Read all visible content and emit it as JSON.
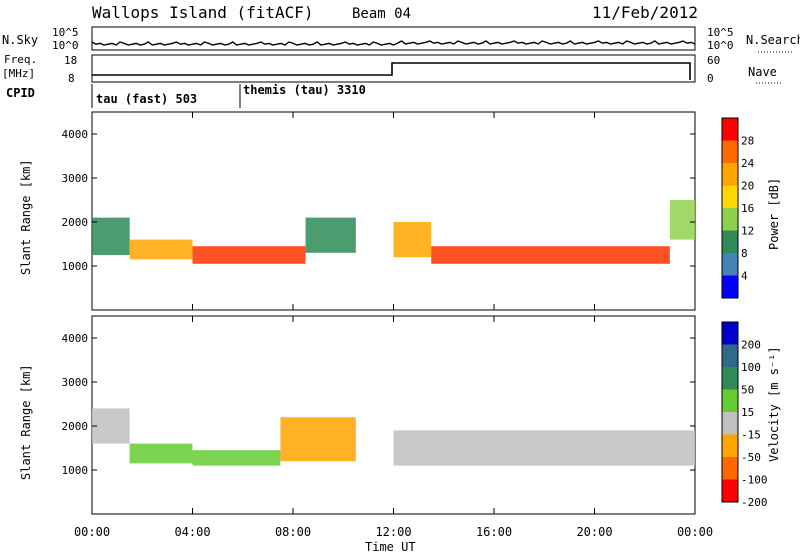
{
  "header": {
    "site": "Wallops Island (fitACF)",
    "beam": "Beam 04",
    "date": "11/Feb/2012"
  },
  "side_labels": {
    "nsky": "N.Sky",
    "nsearch": "N.Search",
    "freq_top": "Freq.",
    "freq_unit": "[MHz]",
    "cpid": "CPID",
    "nave": "Nave",
    "nsky_ticks": [
      "10^5",
      "10^0"
    ],
    "nsearch_ticks": [
      "10^5",
      "10^0"
    ],
    "freq_ticks": [
      "18",
      "8"
    ],
    "nave_ticks": [
      "60",
      "0"
    ]
  },
  "cpid_labels": [
    {
      "text": "tau (fast) 503",
      "start_hour": 0
    },
    {
      "text": "themis (tau) 3310",
      "start_hour": 6
    }
  ],
  "chart_data": [
    {
      "type": "heatmap",
      "name": "power",
      "ylabel": "Slant Range [km]",
      "xlabel": "",
      "xlim": [
        0,
        24
      ],
      "ylim": [
        0,
        4500
      ],
      "yticks": [
        1000,
        2000,
        3000,
        4000
      ],
      "colorbar": {
        "label": "Power [dB]",
        "ticks": [
          "28",
          "24",
          "20",
          "16",
          "12",
          "8",
          "4"
        ],
        "colors": [
          "#ff0000",
          "#ff6a00",
          "#ffa500",
          "#ffd700",
          "#8fd14f",
          "#2e8b57",
          "#4682b4",
          "#0000ff"
        ]
      },
      "bands": [
        {
          "t0": 0.0,
          "t1": 1.5,
          "r0": 1250,
          "r1": 2100,
          "color": "#2e8b57"
        },
        {
          "t0": 1.5,
          "t1": 4.0,
          "r0": 1150,
          "r1": 1600,
          "color": "#ffa500"
        },
        {
          "t0": 4.0,
          "t1": 8.5,
          "r0": 1050,
          "r1": 1450,
          "color": "#ff3300"
        },
        {
          "t0": 8.5,
          "t1": 10.5,
          "r0": 1300,
          "r1": 2100,
          "color": "#2e8b57"
        },
        {
          "t0": 12.0,
          "t1": 13.5,
          "r0": 1200,
          "r1": 2000,
          "color": "#ffa500"
        },
        {
          "t0": 13.5,
          "t1": 23.0,
          "r0": 1050,
          "r1": 1450,
          "color": "#ff3300"
        },
        {
          "t0": 23.0,
          "t1": 24.0,
          "r0": 1600,
          "r1": 2500,
          "color": "#8fd14f"
        }
      ]
    },
    {
      "type": "heatmap",
      "name": "velocity",
      "ylabel": "Slant Range [km]",
      "xlabel": "Time UT",
      "xlim": [
        0,
        24
      ],
      "ylim": [
        0,
        4500
      ],
      "yticks": [
        1000,
        2000,
        3000,
        4000
      ],
      "xticks": [
        "00:00",
        "04:00",
        "08:00",
        "12:00",
        "16:00",
        "20:00",
        "00:00"
      ],
      "colorbar": {
        "label": "Velocity [m s⁻¹]",
        "ticks": [
          "200",
          "100",
          "50",
          "15",
          "-15",
          "-50",
          "-100",
          "-200"
        ],
        "colors": [
          "#0000cc",
          "#2e6b8a",
          "#2e8b57",
          "#66cc33",
          "#c0c0c0",
          "#ffa500",
          "#ff6600",
          "#ff0000"
        ]
      },
      "bands": [
        {
          "t0": 0.0,
          "t1": 1.5,
          "r0": 1600,
          "r1": 2400,
          "color": "#c0c0c0"
        },
        {
          "t0": 1.5,
          "t1": 4.0,
          "r0": 1150,
          "r1": 1600,
          "color": "#66cc33"
        },
        {
          "t0": 4.0,
          "t1": 7.5,
          "r0": 1100,
          "r1": 1450,
          "color": "#66cc33"
        },
        {
          "t0": 7.5,
          "t1": 10.5,
          "r0": 1200,
          "r1": 2200,
          "color": "#ffa500"
        },
        {
          "t0": 12.0,
          "t1": 24.0,
          "r0": 1100,
          "r1": 1900,
          "color": "#c0c0c0"
        }
      ]
    }
  ]
}
